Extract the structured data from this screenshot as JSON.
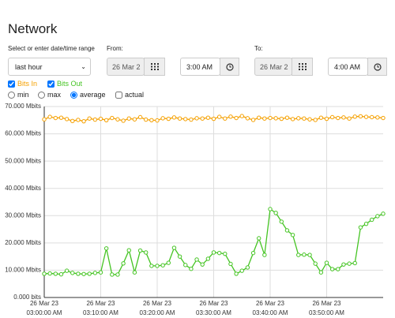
{
  "header": {
    "title": "Network"
  },
  "range": {
    "label": "Select or enter date/time range",
    "preset": "last hour",
    "from_label": "From:",
    "from_date": "26 Mar 2",
    "from_time": "3:00 AM",
    "to_label": "To:",
    "to_date": "26 Mar 2",
    "to_time": "4:00 AM"
  },
  "stats": {
    "options": [
      "min",
      "max",
      "average",
      "actual"
    ]
  },
  "chart_data": {
    "type": "line",
    "x": [
      "03:00:00 AM",
      "03:01:00 AM",
      "03:02:00 AM",
      "03:03:00 AM",
      "03:04:00 AM",
      "03:05:00 AM",
      "03:06:00 AM",
      "03:07:00 AM",
      "03:08:00 AM",
      "03:09:00 AM",
      "03:10:00 AM",
      "03:11:00 AM",
      "03:12:00 AM",
      "03:13:00 AM",
      "03:14:00 AM",
      "03:15:00 AM",
      "03:16:00 AM",
      "03:17:00 AM",
      "03:18:00 AM",
      "03:19:00 AM",
      "03:20:00 AM",
      "03:21:00 AM",
      "03:22:00 AM",
      "03:23:00 AM",
      "03:24:00 AM",
      "03:25:00 AM",
      "03:26:00 AM",
      "03:27:00 AM",
      "03:28:00 AM",
      "03:29:00 AM",
      "03:30:00 AM",
      "03:31:00 AM",
      "03:32:00 AM",
      "03:33:00 AM",
      "03:34:00 AM",
      "03:35:00 AM",
      "03:36:00 AM",
      "03:37:00 AM",
      "03:38:00 AM",
      "03:39:00 AM",
      "03:40:00 AM",
      "03:41:00 AM",
      "03:42:00 AM",
      "03:43:00 AM",
      "03:44:00 AM",
      "03:45:00 AM",
      "03:46:00 AM",
      "03:47:00 AM",
      "03:48:00 AM",
      "03:49:00 AM",
      "03:50:00 AM",
      "03:51:00 AM",
      "03:52:00 AM",
      "03:53:00 AM",
      "03:54:00 AM",
      "03:55:00 AM",
      "03:56:00 AM",
      "03:57:00 AM",
      "03:58:00 AM",
      "03:59:00 AM",
      "04:00:00 AM"
    ],
    "xticks": [
      {
        "date": "26 Mar 23",
        "time": "03:00:00 AM"
      },
      {
        "date": "26 Mar 23",
        "time": "03:10:00 AM"
      },
      {
        "date": "26 Mar 23",
        "time": "03:20:00 AM"
      },
      {
        "date": "26 Mar 23",
        "time": "03:30:00 AM"
      },
      {
        "date": "26 Mar 23",
        "time": "03:40:00 AM"
      },
      {
        "date": "26 Mar 23",
        "time": "03:50:00 AM"
      }
    ],
    "ylim": [
      0,
      70
    ],
    "yticks": [
      {
        "value": 0,
        "label": "0.000 bits"
      },
      {
        "value": 10,
        "label": "10.000 Mbits"
      },
      {
        "value": 20,
        "label": "20.000 Mbits"
      },
      {
        "value": 30,
        "label": "30.000 Mbits"
      },
      {
        "value": 40,
        "label": "40.000 Mbits"
      },
      {
        "value": 50,
        "label": "50.000 Mbits"
      },
      {
        "value": 60,
        "label": "60.000 Mbits"
      },
      {
        "value": 70,
        "label": "70.000 Mbits"
      }
    ],
    "grid": true,
    "series": [
      {
        "name": "Bits In",
        "color": "#f5a000",
        "values": [
          65.3,
          66.2,
          65.8,
          65.9,
          65.4,
          64.7,
          65.1,
          64.6,
          65.6,
          65.2,
          65.5,
          65.0,
          65.8,
          65.3,
          64.8,
          65.6,
          65.3,
          66.1,
          65.2,
          65.0,
          64.9,
          65.7,
          65.5,
          66.0,
          65.6,
          65.4,
          65.2,
          65.7,
          65.6,
          65.9,
          65.5,
          66.2,
          65.6,
          66.3,
          65.8,
          66.5,
          65.7,
          65.1,
          65.9,
          65.6,
          65.8,
          65.7,
          65.5,
          65.9,
          65.4,
          65.7,
          65.6,
          65.3,
          65.1,
          65.9,
          65.5,
          66.1,
          65.8,
          66.0,
          65.6,
          66.3,
          66.4,
          66.2,
          66.1,
          66.0,
          65.8
        ]
      },
      {
        "name": "Bits Out",
        "color": "#44c422",
        "values": [
          8.7,
          8.8,
          8.7,
          8.5,
          9.8,
          9.0,
          8.7,
          8.6,
          8.7,
          9.0,
          9.2,
          18.0,
          8.4,
          8.4,
          12.5,
          17.3,
          9.2,
          17.2,
          16.5,
          11.6,
          11.6,
          11.8,
          12.7,
          18.2,
          15.0,
          11.9,
          10.5,
          13.9,
          12.1,
          14.2,
          16.5,
          16.3,
          16.0,
          12.3,
          8.7,
          9.8,
          11.0,
          16.3,
          21.7,
          15.6,
          32.4,
          31.0,
          27.8,
          24.6,
          22.9,
          15.6,
          15.7,
          15.6,
          12.4,
          9.2,
          12.7,
          10.4,
          10.4,
          12.1,
          12.4,
          12.6,
          25.7,
          27.0,
          28.5,
          29.8,
          30.7
        ]
      }
    ]
  }
}
